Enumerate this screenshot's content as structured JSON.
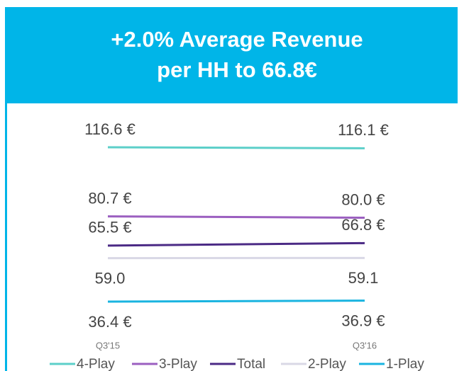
{
  "chart_data": {
    "type": "line",
    "title": [
      "+2.0% Average Revenue",
      "per HH to 66.8€"
    ],
    "categories": [
      "Q3'15",
      "Q3'16"
    ],
    "series": [
      {
        "name": "4-Play",
        "color": "#5ccfc9",
        "values": [
          116.6,
          116.1
        ],
        "value_labels": [
          "116.6 €",
          "116.1 €"
        ]
      },
      {
        "name": "3-Play",
        "color": "#9b5fc0",
        "values": [
          80.7,
          80.0
        ],
        "value_labels": [
          "80.7 €",
          "80.0 €"
        ]
      },
      {
        "name": "Total",
        "color": "#4b2a85",
        "values": [
          65.5,
          66.8
        ],
        "value_labels": [
          "65.5 €",
          "66.8 €"
        ]
      },
      {
        "name": "2-Play",
        "color": "#d9d8e6",
        "values": [
          59.0,
          59.1
        ],
        "value_labels": [
          "59.0",
          "59.1"
        ]
      },
      {
        "name": "1-Play",
        "color": "#1ab4e0",
        "values": [
          36.4,
          36.9
        ],
        "value_labels": [
          "36.4 €",
          "36.9 €"
        ]
      }
    ],
    "ylim": [
      20,
      140
    ]
  }
}
